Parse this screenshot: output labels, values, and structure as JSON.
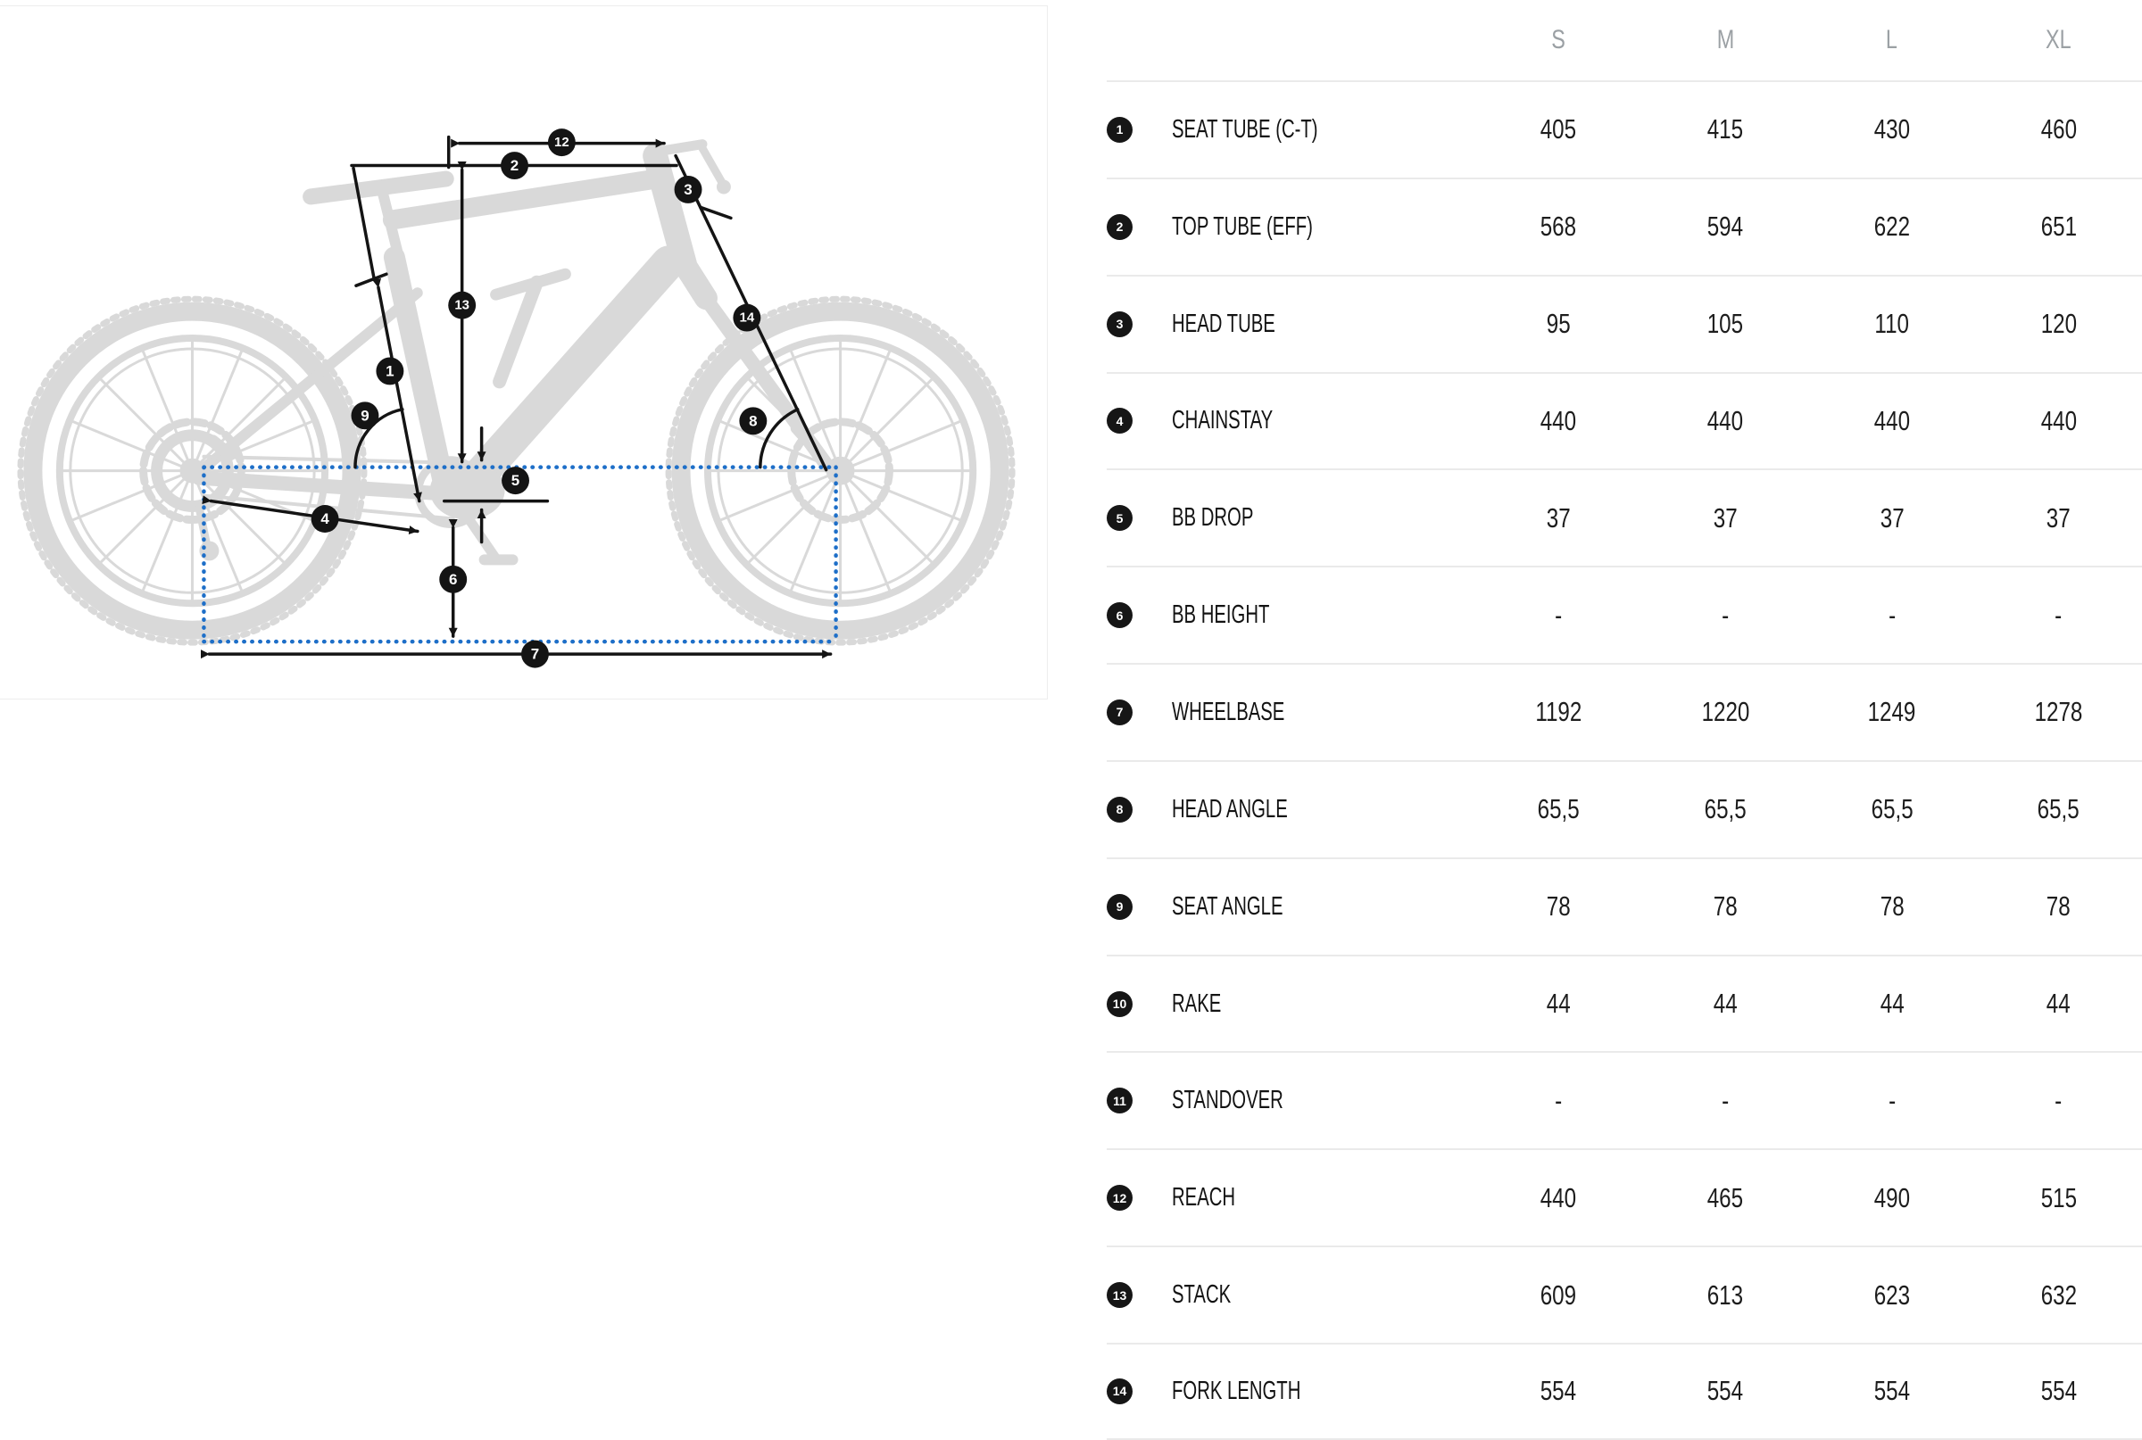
{
  "diagram": {
    "description": "bike geometry diagram",
    "callouts": [
      "1",
      "2",
      "3",
      "4",
      "5",
      "6",
      "7",
      "8",
      "9",
      "12",
      "13",
      "14"
    ],
    "colors": {
      "silhouette": "#d9d9d9",
      "annotation_ink": "#141414",
      "wheelbase_guide_blue": "#1e6fc8"
    }
  },
  "table": {
    "size_headers": [
      "S",
      "M",
      "L",
      "XL"
    ],
    "rows": [
      {
        "num": "1",
        "label": "SEAT TUBE (C-T)",
        "values": [
          "405",
          "415",
          "430",
          "460"
        ]
      },
      {
        "num": "2",
        "label": "TOP TUBE (EFF)",
        "values": [
          "568",
          "594",
          "622",
          "651"
        ]
      },
      {
        "num": "3",
        "label": "HEAD TUBE",
        "values": [
          "95",
          "105",
          "110",
          "120"
        ]
      },
      {
        "num": "4",
        "label": "CHAINSTAY",
        "values": [
          "440",
          "440",
          "440",
          "440"
        ]
      },
      {
        "num": "5",
        "label": "BB DROP",
        "values": [
          "37",
          "37",
          "37",
          "37"
        ]
      },
      {
        "num": "6",
        "label": "BB HEIGHT",
        "values": [
          "-",
          "-",
          "-",
          "-"
        ]
      },
      {
        "num": "7",
        "label": "WHEELBASE",
        "values": [
          "1192",
          "1220",
          "1249",
          "1278"
        ]
      },
      {
        "num": "8",
        "label": "HEAD ANGLE",
        "values": [
          "65,5",
          "65,5",
          "65,5",
          "65,5"
        ]
      },
      {
        "num": "9",
        "label": "SEAT ANGLE",
        "values": [
          "78",
          "78",
          "78",
          "78"
        ]
      },
      {
        "num": "10",
        "label": "RAKE",
        "values": [
          "44",
          "44",
          "44",
          "44"
        ]
      },
      {
        "num": "11",
        "label": "STANDOVER",
        "values": [
          "-",
          "-",
          "-",
          "-"
        ]
      },
      {
        "num": "12",
        "label": "REACH",
        "values": [
          "440",
          "465",
          "490",
          "515"
        ]
      },
      {
        "num": "13",
        "label": "STACK",
        "values": [
          "609",
          "613",
          "623",
          "632"
        ]
      },
      {
        "num": "14",
        "label": "FORK LENGTH",
        "values": [
          "554",
          "554",
          "554",
          "554"
        ]
      }
    ]
  }
}
